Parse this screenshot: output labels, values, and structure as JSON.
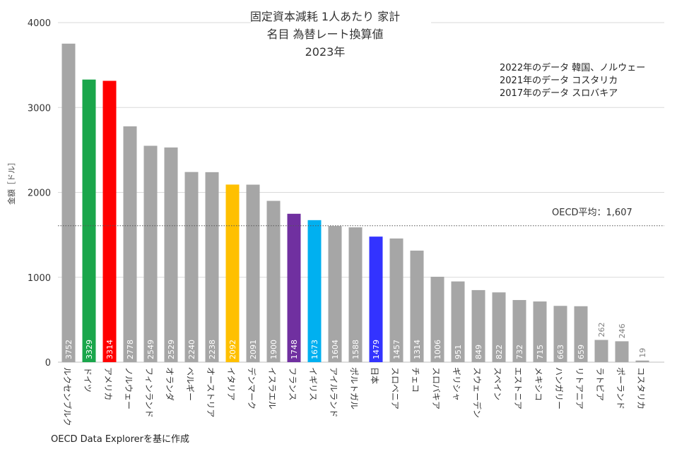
{
  "chart_data": {
    "type": "bar",
    "title_lines": [
      "固定資本減耗 1人あたり 家計",
      "名目 為替レート換算値",
      "2023年"
    ],
    "ylabel": "金額［ドル］",
    "xlabel": "",
    "ylim": [
      0,
      4000
    ],
    "yticks": [
      0,
      1000,
      2000,
      3000,
      4000
    ],
    "grid": true,
    "categories": [
      "ルクセンブルク",
      "ドイツ",
      "アメリカ",
      "ノルウェー",
      "フィンランド",
      "オランダ",
      "ベルギー",
      "オーストリア",
      "イタリア",
      "デンマーク",
      "イスラエル",
      "フランス",
      "イギリス",
      "アイルランド",
      "ポルトガル",
      "日本",
      "スロベニア",
      "チェコ",
      "スロバキア",
      "ギリシャ",
      "スウェーデン",
      "スペイン",
      "エストニア",
      "メキシコ",
      "ハンガリー",
      "リトアニア",
      "ラトビア",
      "ポーランド",
      "コスタリカ"
    ],
    "values": [
      3752,
      3329,
      3314,
      2778,
      2549,
      2529,
      2240,
      2238,
      2092,
      2091,
      1900,
      1748,
      1673,
      1604,
      1588,
      1479,
      1457,
      1314,
      1006,
      951,
      849,
      822,
      732,
      715,
      663,
      659,
      262,
      246,
      19
    ],
    "colors": [
      "#a6a6a6",
      "#1aa64b",
      "#ff0000",
      "#a6a6a6",
      "#a6a6a6",
      "#a6a6a6",
      "#a6a6a6",
      "#a6a6a6",
      "#ffc000",
      "#a6a6a6",
      "#a6a6a6",
      "#7030a0",
      "#00b0f0",
      "#a6a6a6",
      "#a6a6a6",
      "#3333ff",
      "#a6a6a6",
      "#a6a6a6",
      "#a6a6a6",
      "#a6a6a6",
      "#a6a6a6",
      "#a6a6a6",
      "#a6a6a6",
      "#a6a6a6",
      "#a6a6a6",
      "#a6a6a6",
      "#a6a6a6",
      "#a6a6a6",
      "#a6a6a6"
    ],
    "reference_line": {
      "value": 1607,
      "label": "OECD平均：1,607"
    },
    "notes": [
      "2022年のデータ 韓国、ノルウェー",
      "2021年のデータ コスタリカ",
      "2017年のデータ スロバキア"
    ],
    "source": "OECD Data Explorerを基に作成"
  }
}
